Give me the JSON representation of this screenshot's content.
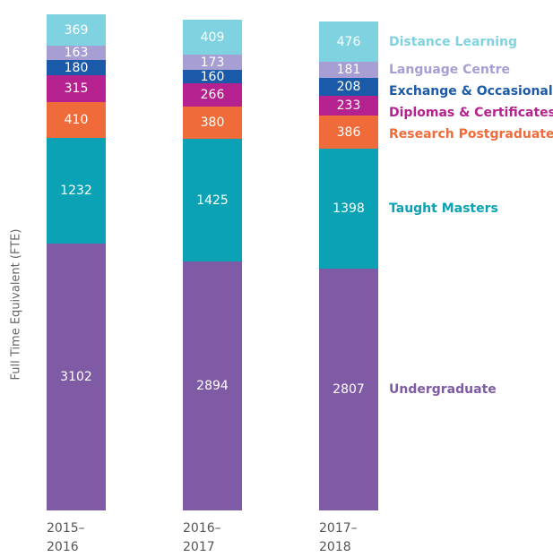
{
  "chart_data": {
    "type": "stacked_bar",
    "y_label": "Full Time Equivalent (FTE)",
    "categories": [
      "2015–2016",
      "2016–2017",
      "2017–2018"
    ],
    "ylim": [
      0,
      5800
    ],
    "series": [
      {
        "name": "Undergraduate",
        "color": "#7f5ba6",
        "values": [
          3102,
          2894,
          2807
        ]
      },
      {
        "name": "Taught Masters",
        "color": "#0aa2b4",
        "values": [
          1232,
          1425,
          1398
        ]
      },
      {
        "name": "Research Postgraduate",
        "color": "#ef6b3a",
        "values": [
          410,
          380,
          386
        ]
      },
      {
        "name": "Diplomas & Certificates",
        "color": "#b5218e",
        "values": [
          315,
          266,
          233
        ]
      },
      {
        "name": "Exchange & Occasionals",
        "color": "#1b5aa8",
        "values": [
          180,
          160,
          208
        ]
      },
      {
        "name": "Language Centre",
        "color": "#a79ed3",
        "values": [
          163,
          173,
          181
        ]
      },
      {
        "name": "Distance Learning",
        "color": "#7fd3e0",
        "values": [
          369,
          409,
          476
        ]
      }
    ]
  }
}
